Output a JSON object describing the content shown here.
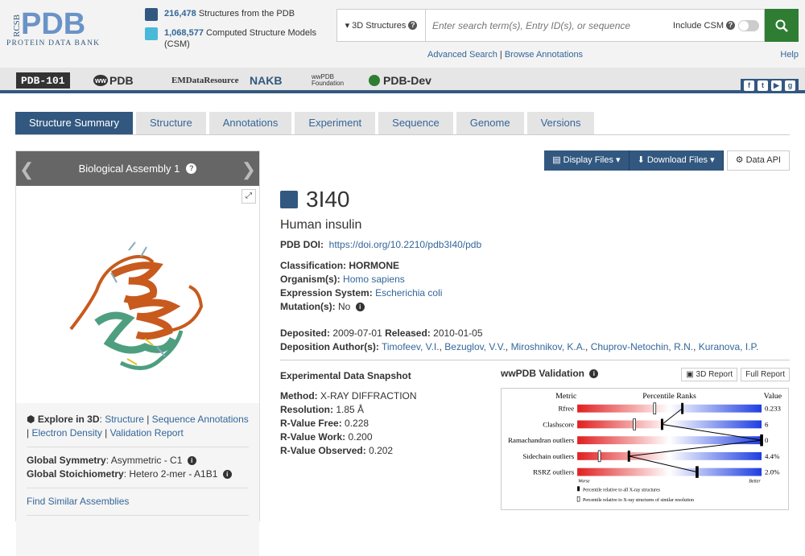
{
  "header": {
    "logo_main": "PDB",
    "logo_rcsb": "RCSB",
    "logo_sub": "PROTEIN DATA BANK",
    "stats": [
      {
        "count": "216,478",
        "label": "Structures from the PDB"
      },
      {
        "count": "1,068,577",
        "label": "Computed Structure Models (CSM)"
      }
    ],
    "scope": "3D Structures",
    "search_placeholder": "Enter search term(s), Entry ID(s), or sequence",
    "include_csm": "Include CSM",
    "advanced_search": "Advanced Search",
    "browse_annotations": "Browse Annotations",
    "help": "Help"
  },
  "partners": [
    "PDB-101",
    "PDB",
    "EMDataResource",
    "NAKB",
    "wwPDB Foundation",
    "PDB-Dev"
  ],
  "tabs": [
    "Structure Summary",
    "Structure",
    "Annotations",
    "Experiment",
    "Sequence",
    "Genome",
    "Versions"
  ],
  "left": {
    "assembly_title": "Biological Assembly 1",
    "explore_label": "Explore in 3D",
    "explore_links": [
      "Structure",
      "Sequence Annotations",
      "Electron Density",
      "Validation Report"
    ],
    "symmetry_label": "Global Symmetry",
    "symmetry_value": "Asymmetric - C1",
    "stoich_label": "Global Stoichiometry",
    "stoich_value": "Hetero 2-mer - A1B1",
    "find_similar": "Find Similar Assemblies"
  },
  "buttons": {
    "display_files": "Display Files",
    "download_files": "Download Files",
    "data_api": "Data API"
  },
  "entry": {
    "id": "3I40",
    "title": "Human insulin",
    "doi_label": "PDB DOI:",
    "doi": "https://doi.org/10.2210/pdb3I40/pdb",
    "classification_label": "Classification:",
    "classification": "HORMONE",
    "organism_label": "Organism(s):",
    "organism": "Homo sapiens",
    "expression_label": "Expression System:",
    "expression": "Escherichia coli",
    "mutation_label": "Mutation(s):",
    "mutation": "No",
    "deposited_label": "Deposited:",
    "deposited": "2009-07-01",
    "released_label": "Released:",
    "released": "2010-01-05",
    "authors_label": "Deposition Author(s):",
    "authors": [
      "Timofeev, V.I.",
      "Bezuglov, V.V.",
      "Miroshnikov, K.A.",
      "Chuprov-Netochin, R.N.",
      "Kuranova, I.P."
    ]
  },
  "snapshot": {
    "title": "Experimental Data Snapshot",
    "method_label": "Method:",
    "method": "X-RAY DIFFRACTION",
    "resolution_label": "Resolution:",
    "resolution": "1.85 Å",
    "rfree_label": "R-Value Free:",
    "rfree": "0.228",
    "rwork_label": "R-Value Work:",
    "rwork": "0.200",
    "robs_label": "R-Value Observed:",
    "robs": "0.202"
  },
  "validation": {
    "title": "wwPDB Validation",
    "btn_3d": "3D Report",
    "btn_full": "Full Report",
    "col_metric": "Metric",
    "col_ranks": "Percentile Ranks",
    "col_value": "Value",
    "worse": "Worse",
    "better": "Better",
    "legend_all": "Percentile relative to all X-ray structures",
    "legend_similar": "Percentile relative to X-ray structures of similar resolution",
    "metrics": [
      {
        "name": "Rfree",
        "value": "0.233",
        "all": 0.57,
        "similar": 0.42
      },
      {
        "name": "Clashscore",
        "value": "6",
        "all": 0.46,
        "similar": 0.31
      },
      {
        "name": "Ramachandran outliers",
        "value": "0",
        "all": 1.0,
        "similar": 1.0
      },
      {
        "name": "Sidechain outliers",
        "value": "4.4%",
        "all": 0.28,
        "similar": 0.12
      },
      {
        "name": "RSRZ outliers",
        "value": "2.0%",
        "all": 0.65,
        "similar": 0.65
      }
    ]
  }
}
